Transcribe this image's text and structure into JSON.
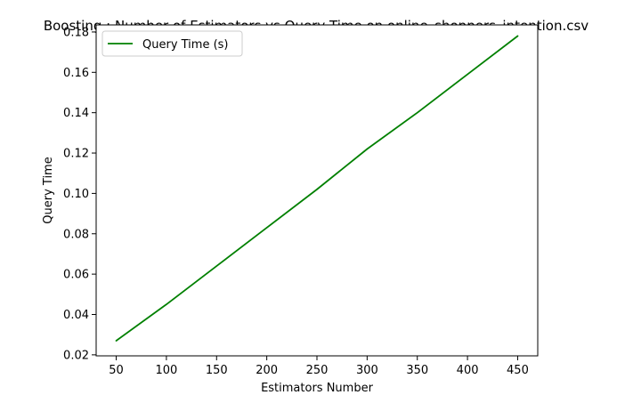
{
  "chart_data": {
    "type": "line",
    "title": "Boosting : Number of Estimators vs Query Time on online_shoppers_intention.csv",
    "xlabel": "Estimators Number",
    "ylabel": "Query Time",
    "xlim": [
      30,
      470
    ],
    "ylim": [
      0.0195,
      0.1835
    ],
    "xticks": [
      50,
      100,
      150,
      200,
      250,
      300,
      350,
      400,
      450
    ],
    "xtick_labels": [
      "50",
      "100",
      "150",
      "200",
      "250",
      "300",
      "350",
      "400",
      "450"
    ],
    "yticks": [
      0.02,
      0.04,
      0.06,
      0.08,
      0.1,
      0.12,
      0.14,
      0.16,
      0.18
    ],
    "ytick_labels": [
      "0.02",
      "0.04",
      "0.06",
      "0.08",
      "0.10",
      "0.12",
      "0.14",
      "0.16",
      "0.18"
    ],
    "grid": false,
    "legend_position": "top-left",
    "x": [
      50,
      100,
      150,
      200,
      250,
      300,
      350,
      400,
      450
    ],
    "series": [
      {
        "name": "Query Time (s)",
        "color": "#008000",
        "values": [
          0.027,
          0.045,
          0.064,
          0.083,
          0.102,
          0.122,
          0.14,
          0.159,
          0.178
        ]
      }
    ]
  }
}
